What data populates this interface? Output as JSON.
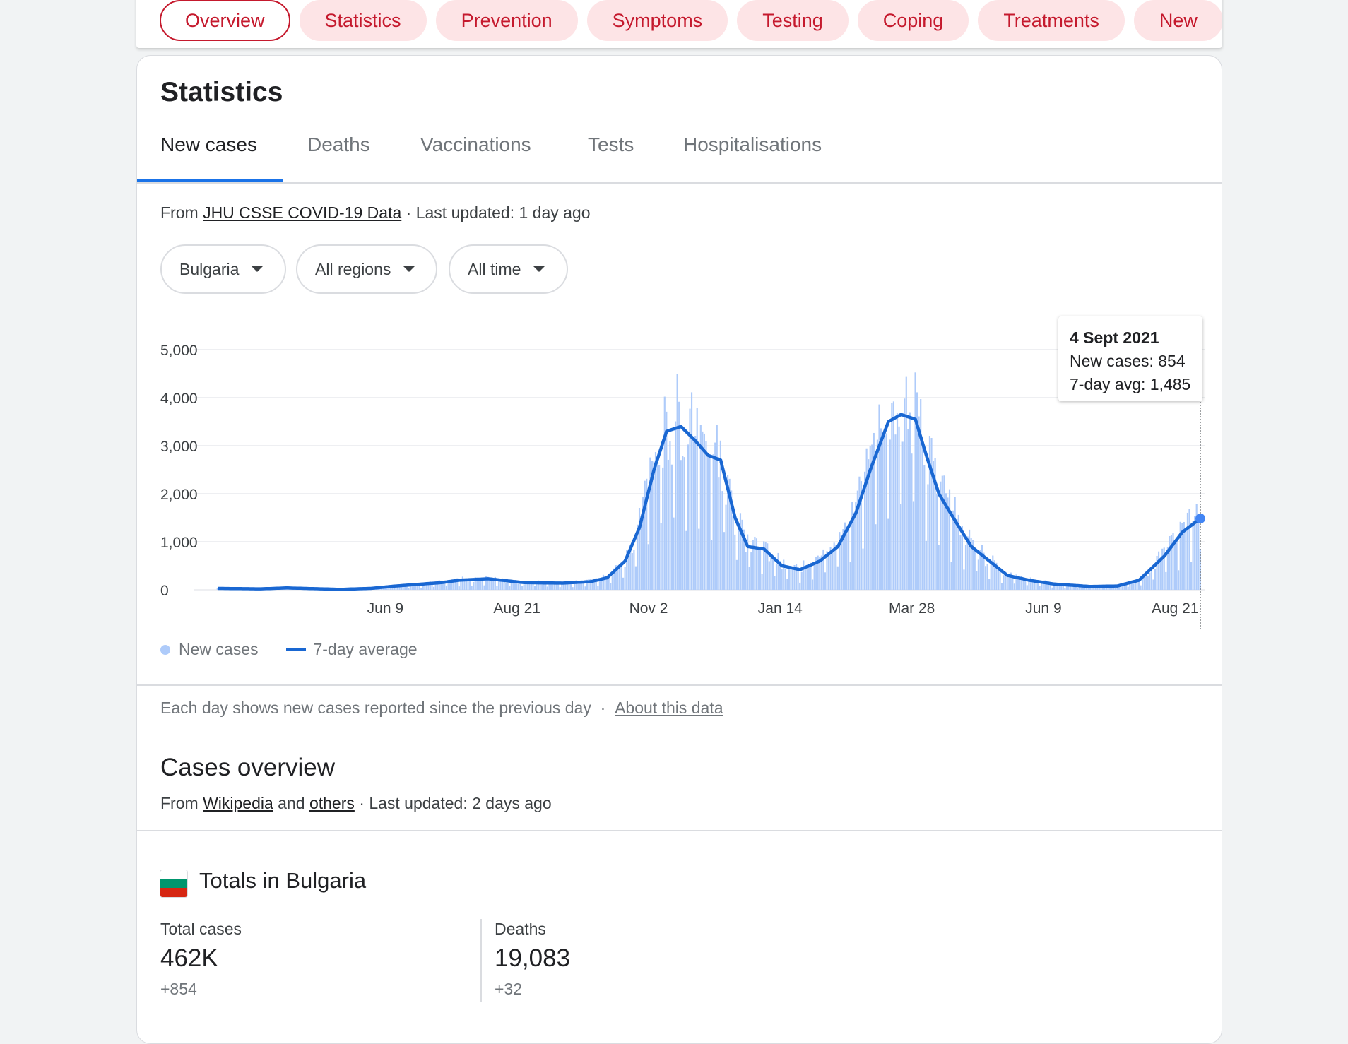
{
  "topics": {
    "chips": [
      "Overview",
      "Statistics",
      "Prevention",
      "Symptoms",
      "Testing",
      "Coping",
      "Treatments",
      "New"
    ],
    "active": "Overview"
  },
  "stats": {
    "title": "Statistics",
    "tabs": [
      "New cases",
      "Deaths",
      "Vaccinations",
      "Tests",
      "Hospitalisations"
    ],
    "active_tab": "New cases",
    "source": {
      "prefix": "From ",
      "link": "JHU CSSE COVID-19 Data",
      "suffix": " · Last updated: 1 day ago"
    },
    "filters": {
      "country": "Bulgaria",
      "region": "All regions",
      "time": "All time"
    },
    "tooltip": {
      "date": "4 Sept 2021",
      "new_cases": "New cases: 854",
      "avg": "7-day avg: 1,485"
    },
    "legend": {
      "new_cases": "New cases",
      "avg": "7-day average"
    },
    "note": {
      "text": "Each day shows new cases reported since the previous day",
      "sep": "·",
      "link": "About this data"
    }
  },
  "overview": {
    "title": "Cases overview",
    "source": {
      "prefix": "From ",
      "link1": "Wikipedia",
      "mid": " and ",
      "link2": "others",
      "suffix": " · Last updated: 2 days ago"
    },
    "totals_title": "Totals in Bulgaria",
    "flag_colors": [
      "#ffffff",
      "#00966e",
      "#d62612"
    ],
    "total_cases": {
      "label": "Total cases",
      "value": "462K",
      "delta": "+854"
    },
    "deaths": {
      "label": "Deaths",
      "value": "19,083",
      "delta": "+32"
    }
  },
  "chart_data": {
    "type": "bar",
    "title": "",
    "xlabel": "",
    "ylabel": "",
    "ylim": [
      0,
      5000
    ],
    "yticks": [
      0,
      1000,
      2000,
      3000,
      4000,
      5000
    ],
    "ytick_labels": [
      "0",
      "1,000",
      "2,000",
      "3,000",
      "4,000",
      "5,000"
    ],
    "xtick_labels": [
      "Jun 9",
      "Aug 21",
      "Nov 2",
      "Jan 14",
      "Mar 28",
      "Jun 9",
      "Aug 21"
    ],
    "colors": {
      "bars": "#aecbfa",
      "line": "#1967d2",
      "grid": "#e8eaed"
    },
    "series": [
      {
        "name": "7-day average",
        "kind": "line",
        "anchors": [
          [
            "2020-03-08",
            30
          ],
          [
            "2020-04-01",
            20
          ],
          [
            "2020-04-15",
            40
          ],
          [
            "2020-05-15",
            10
          ],
          [
            "2020-06-01",
            30
          ],
          [
            "2020-06-15",
            80
          ],
          [
            "2020-07-10",
            150
          ],
          [
            "2020-07-20",
            200
          ],
          [
            "2020-08-05",
            230
          ],
          [
            "2020-08-25",
            150
          ],
          [
            "2020-09-15",
            140
          ],
          [
            "2020-10-01",
            170
          ],
          [
            "2020-10-10",
            250
          ],
          [
            "2020-10-20",
            600
          ],
          [
            "2020-10-28",
            1300
          ],
          [
            "2020-11-05",
            2500
          ],
          [
            "2020-11-12",
            3300
          ],
          [
            "2020-11-20",
            3400
          ],
          [
            "2020-11-28",
            3100
          ],
          [
            "2020-12-05",
            2800
          ],
          [
            "2020-12-12",
            2700
          ],
          [
            "2020-12-20",
            1500
          ],
          [
            "2020-12-27",
            900
          ],
          [
            "2021-01-05",
            850
          ],
          [
            "2021-01-15",
            500
          ],
          [
            "2021-01-25",
            420
          ],
          [
            "2021-02-05",
            600
          ],
          [
            "2021-02-15",
            900
          ],
          [
            "2021-02-25",
            1600
          ],
          [
            "2021-03-05",
            2500
          ],
          [
            "2021-03-15",
            3500
          ],
          [
            "2021-03-22",
            3650
          ],
          [
            "2021-03-30",
            3550
          ],
          [
            "2021-04-05",
            2800
          ],
          [
            "2021-04-12",
            2000
          ],
          [
            "2021-04-20",
            1500
          ],
          [
            "2021-04-30",
            900
          ],
          [
            "2021-05-10",
            600
          ],
          [
            "2021-05-20",
            300
          ],
          [
            "2021-06-01",
            200
          ],
          [
            "2021-06-15",
            120
          ],
          [
            "2021-07-05",
            70
          ],
          [
            "2021-07-20",
            80
          ],
          [
            "2021-08-01",
            200
          ],
          [
            "2021-08-15",
            700
          ],
          [
            "2021-08-25",
            1200
          ],
          [
            "2021-09-04",
            1485
          ]
        ]
      }
    ],
    "highlight": {
      "date": "2021-09-04",
      "new_cases": 854,
      "avg": 1485
    }
  }
}
